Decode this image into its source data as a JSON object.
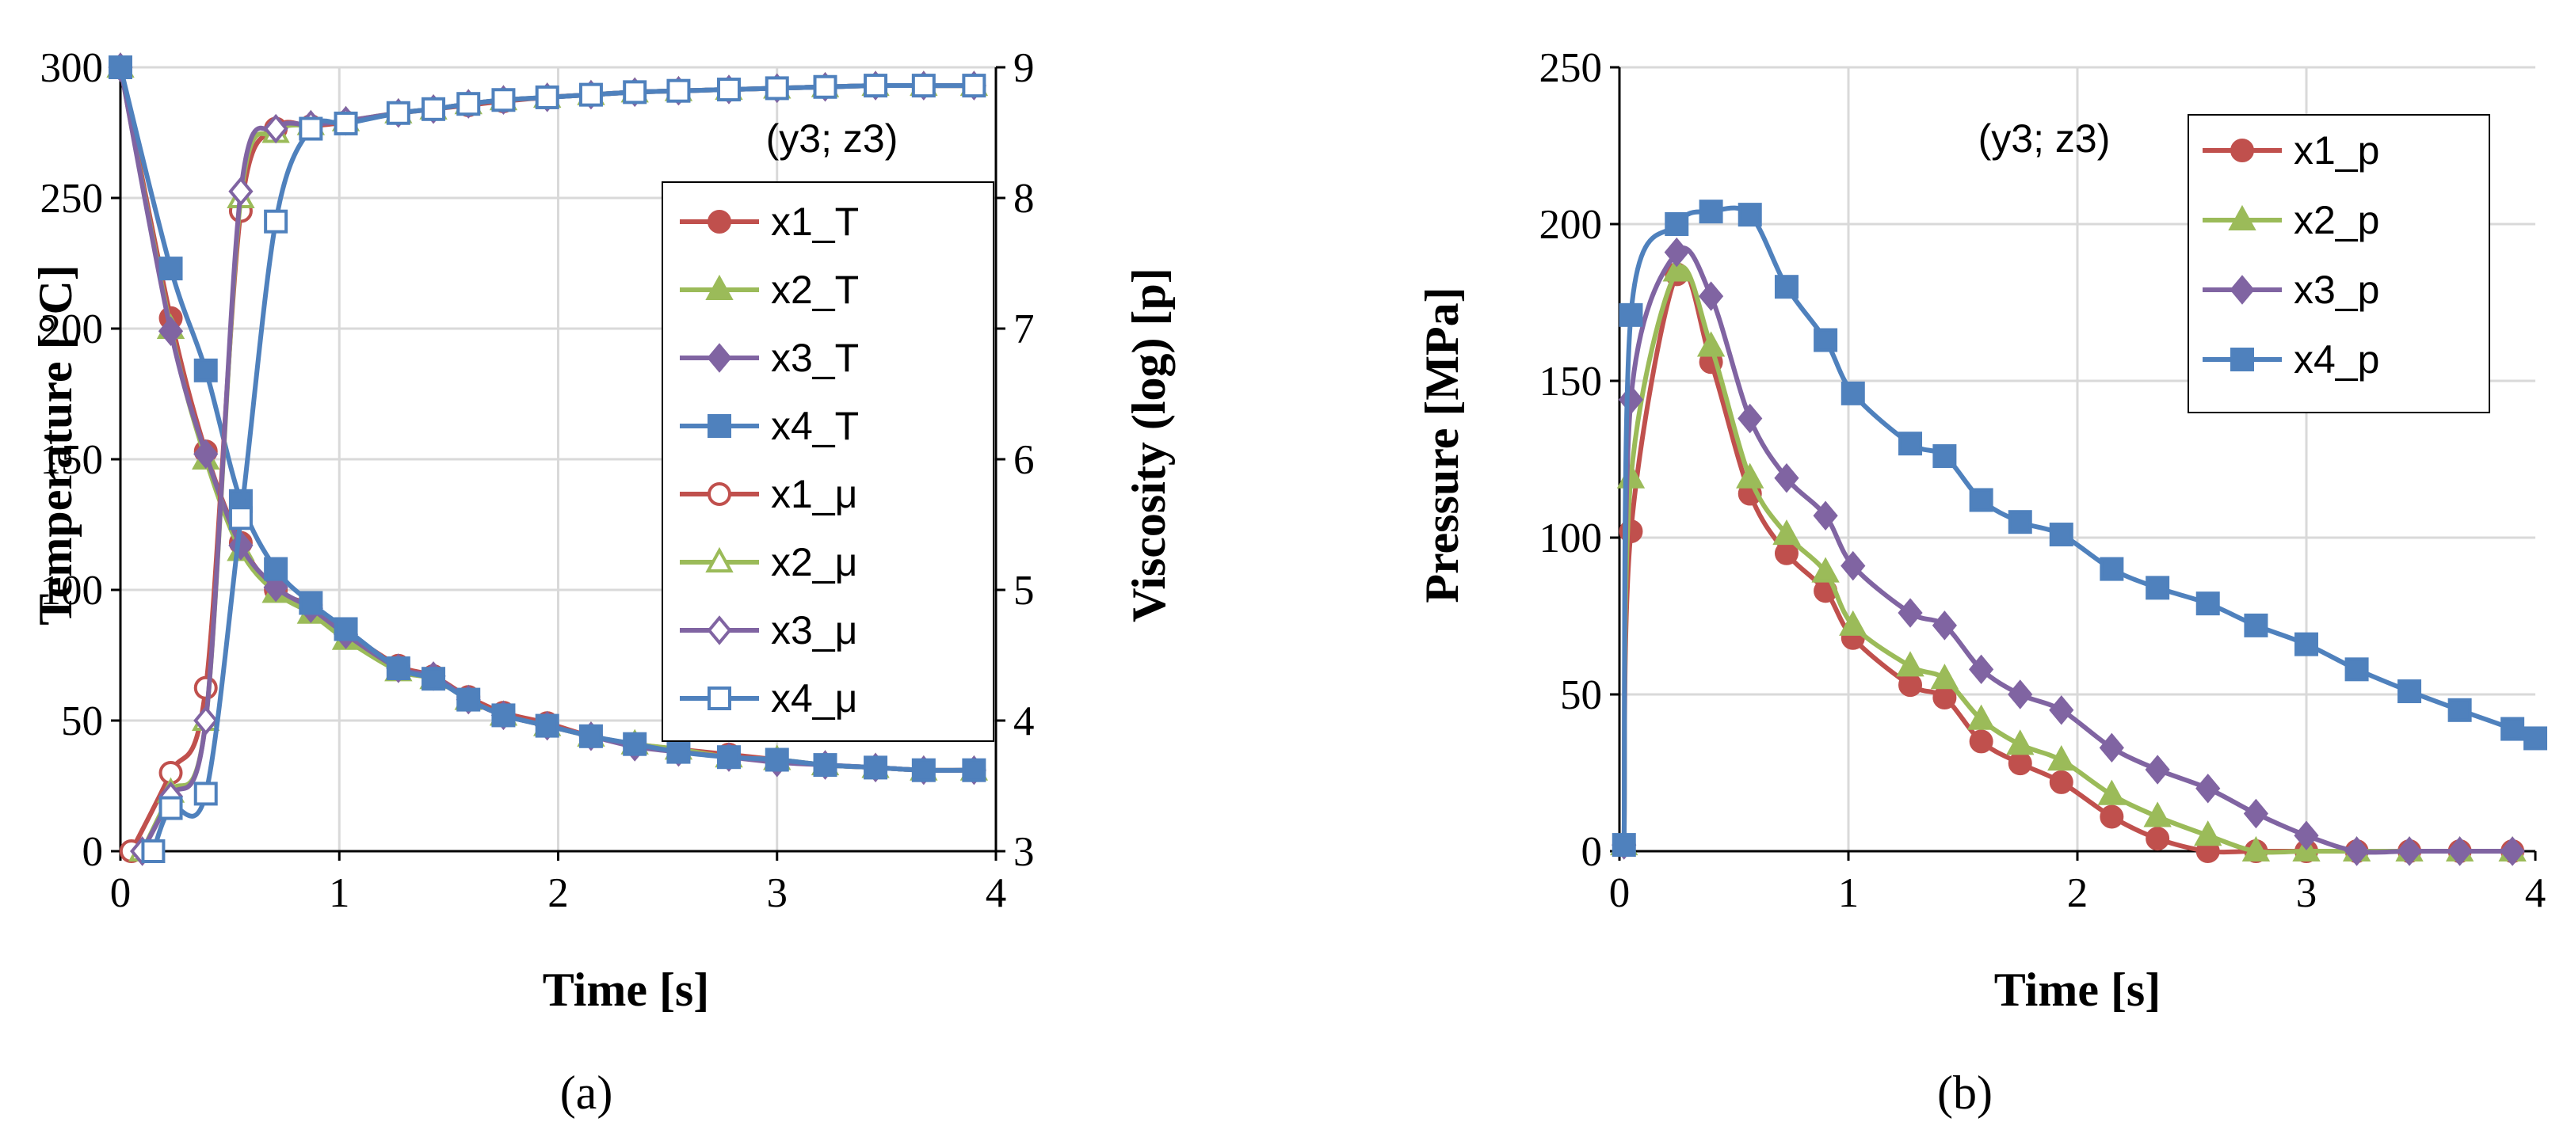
{
  "colors": {
    "x1": "#C0504D",
    "x2": "#9BBB59",
    "x3": "#8064A2",
    "x4": "#4F81BD",
    "grid": "#D9D9D9"
  },
  "chart_data": [
    {
      "type": "line",
      "panel_label": "(a)",
      "annotation": "(y3; z3)",
      "xlabel": "Time [s]",
      "ylabel": "Temperature [°C]",
      "y2label": "Viscosity (log) [p]",
      "xlim": [
        0,
        4
      ],
      "ylim": [
        0,
        300
      ],
      "y2lim": [
        3,
        9
      ],
      "xticks": [
        "0",
        "1",
        "2",
        "3",
        "4"
      ],
      "yticks": [
        "0",
        "50",
        "100",
        "150",
        "200",
        "250",
        "300"
      ],
      "y2ticks": [
        "3",
        "4",
        "5",
        "6",
        "7",
        "8",
        "9"
      ],
      "legend_position": "right",
      "series": [
        {
          "name": "x1_T",
          "color_key": "x1",
          "marker": "circle",
          "filled": true,
          "axis": "left",
          "x": [
            0,
            0.23,
            0.39,
            0.55,
            0.71,
            0.87,
            1.03,
            1.27,
            1.43,
            1.59,
            1.75,
            1.95,
            2.15,
            2.35,
            2.55,
            2.78,
            3.0,
            3.22,
            3.45,
            3.67,
            3.9
          ],
          "y": [
            300,
            204,
            153,
            118,
            100,
            94,
            84,
            71,
            67,
            59,
            53,
            49,
            44,
            41,
            39,
            37,
            35,
            33,
            32,
            31,
            31
          ]
        },
        {
          "name": "x2_T",
          "color_key": "x2",
          "marker": "triangle",
          "filled": true,
          "axis": "left",
          "x": [
            0,
            0.23,
            0.39,
            0.55,
            0.71,
            0.87,
            1.03,
            1.27,
            1.43,
            1.59,
            1.75,
            1.95,
            2.15,
            2.35,
            2.55,
            2.78,
            3.0,
            3.22,
            3.45,
            3.67,
            3.9
          ],
          "y": [
            300,
            200,
            150,
            115,
            99,
            91,
            81,
            69,
            66,
            58,
            52,
            48,
            44,
            41,
            39,
            36,
            35,
            33,
            32,
            31,
            31
          ]
        },
        {
          "name": "x3_T",
          "color_key": "x3",
          "marker": "diamond",
          "filled": true,
          "axis": "left",
          "x": [
            0,
            0.23,
            0.39,
            0.55,
            0.71,
            0.87,
            1.03,
            1.27,
            1.43,
            1.59,
            1.75,
            1.95,
            2.15,
            2.35,
            2.55,
            2.78,
            3.0,
            3.22,
            3.45,
            3.67,
            3.9
          ],
          "y": [
            300,
            199,
            152,
            117,
            101,
            93,
            83,
            70,
            67,
            58,
            52,
            48,
            44,
            40,
            38,
            36,
            34,
            33,
            32,
            31,
            31
          ]
        },
        {
          "name": "x4_T",
          "color_key": "x4",
          "marker": "square",
          "filled": true,
          "axis": "left",
          "x": [
            0,
            0.23,
            0.39,
            0.55,
            0.71,
            0.87,
            1.03,
            1.27,
            1.43,
            1.59,
            1.75,
            1.95,
            2.15,
            2.35,
            2.55,
            2.78,
            3.0,
            3.22,
            3.45,
            3.67,
            3.9
          ],
          "y": [
            300,
            223,
            184,
            134,
            108,
            95,
            85,
            70,
            66,
            58,
            52,
            48,
            44,
            41,
            38,
            36,
            35,
            33,
            32,
            31,
            31
          ]
        },
        {
          "name": "x1_μ",
          "color_key": "x1",
          "marker": "circle",
          "filled": false,
          "axis": "right",
          "x": [
            0.05,
            0.23,
            0.39,
            0.55,
            0.71,
            0.87,
            1.03,
            1.27,
            1.43,
            1.59,
            1.75,
            1.95,
            2.15,
            2.35,
            2.55,
            2.78,
            3.0,
            3.22,
            3.45,
            3.67,
            3.9
          ],
          "y": [
            3.0,
            3.6,
            4.25,
            7.9,
            8.53,
            8.55,
            8.58,
            8.65,
            8.68,
            8.71,
            8.74,
            8.77,
            8.79,
            8.81,
            8.82,
            8.83,
            8.84,
            8.85,
            8.86,
            8.86,
            8.86
          ]
        },
        {
          "name": "x2_μ",
          "color_key": "x2",
          "marker": "triangle",
          "filled": false,
          "axis": "right",
          "x": [
            0.1,
            0.23,
            0.39,
            0.55,
            0.71,
            0.87,
            1.03,
            1.27,
            1.43,
            1.59,
            1.75,
            1.95,
            2.15,
            2.35,
            2.55,
            2.78,
            3.0,
            3.22,
            3.45,
            3.67,
            3.9
          ],
          "y": [
            3.0,
            3.45,
            4.0,
            8.0,
            8.5,
            8.56,
            8.59,
            8.65,
            8.68,
            8.72,
            8.75,
            8.77,
            8.79,
            8.81,
            8.82,
            8.83,
            8.84,
            8.85,
            8.86,
            8.86,
            8.86
          ]
        },
        {
          "name": "x3_μ",
          "color_key": "x3",
          "marker": "diamond",
          "filled": false,
          "axis": "right",
          "x": [
            0.1,
            0.23,
            0.39,
            0.55,
            0.71,
            0.87,
            1.03,
            1.27,
            1.43,
            1.59,
            1.75,
            1.95,
            2.15,
            2.35,
            2.55,
            2.78,
            3.0,
            3.22,
            3.45,
            3.67,
            3.9
          ],
          "y": [
            3.0,
            3.42,
            4.0,
            8.05,
            8.53,
            8.56,
            8.59,
            8.65,
            8.68,
            8.72,
            8.75,
            8.77,
            8.79,
            8.81,
            8.82,
            8.83,
            8.84,
            8.85,
            8.86,
            8.86,
            8.86
          ]
        },
        {
          "name": "x4_μ",
          "color_key": "x4",
          "marker": "square",
          "filled": false,
          "axis": "right",
          "x": [
            0.15,
            0.23,
            0.39,
            0.55,
            0.71,
            0.87,
            1.03,
            1.27,
            1.43,
            1.59,
            1.75,
            1.95,
            2.15,
            2.35,
            2.55,
            2.78,
            3.0,
            3.22,
            3.45,
            3.67,
            3.9
          ],
          "y": [
            3.0,
            3.33,
            3.44,
            5.55,
            7.82,
            8.53,
            8.57,
            8.65,
            8.68,
            8.72,
            8.75,
            8.77,
            8.79,
            8.81,
            8.82,
            8.83,
            8.84,
            8.85,
            8.86,
            8.86,
            8.86
          ]
        }
      ]
    },
    {
      "type": "line",
      "panel_label": "(b)",
      "annotation": "(y3; z3)",
      "xlabel": "Time [s]",
      "ylabel": "Pressure [MPa]",
      "xlim": [
        0,
        4
      ],
      "ylim": [
        0,
        250
      ],
      "xticks": [
        "0",
        "1",
        "2",
        "3",
        "4"
      ],
      "yticks": [
        "0",
        "50",
        "100",
        "150",
        "200",
        "250"
      ],
      "legend_position": "top-right",
      "series": [
        {
          "name": "x1_p",
          "color_key": "x1",
          "marker": "circle",
          "filled": true,
          "x": [
            0.02,
            0.05,
            0.25,
            0.4,
            0.57,
            0.73,
            0.9,
            1.02,
            1.27,
            1.42,
            1.58,
            1.75,
            1.93,
            2.15,
            2.35,
            2.57,
            2.78,
            3.0,
            3.22,
            3.45,
            3.67,
            3.9
          ],
          "y": [
            2,
            102,
            184,
            156,
            114,
            95,
            83,
            68,
            53,
            49,
            35,
            28,
            22,
            11,
            4,
            0,
            0,
            0,
            0,
            0,
            0,
            0
          ]
        },
        {
          "name": "x2_p",
          "color_key": "x2",
          "marker": "triangle",
          "filled": true,
          "x": [
            0.02,
            0.05,
            0.25,
            0.4,
            0.57,
            0.73,
            0.9,
            1.02,
            1.27,
            1.42,
            1.58,
            1.75,
            1.93,
            2.15,
            2.35,
            2.57,
            2.78,
            3.0,
            3.22,
            3.45,
            3.67,
            3.9
          ],
          "y": [
            2,
            119,
            185,
            161,
            119,
            101,
            89,
            72,
            59,
            55,
            42,
            34,
            29,
            18,
            11,
            5,
            0,
            0,
            0,
            0,
            0,
            0
          ]
        },
        {
          "name": "x3_p",
          "color_key": "x3",
          "marker": "diamond",
          "filled": true,
          "x": [
            0.02,
            0.05,
            0.25,
            0.4,
            0.57,
            0.73,
            0.9,
            1.02,
            1.27,
            1.42,
            1.58,
            1.75,
            1.93,
            2.15,
            2.35,
            2.57,
            2.78,
            3.0,
            3.22,
            3.45,
            3.67,
            3.9
          ],
          "y": [
            2,
            144,
            191,
            177,
            138,
            119,
            107,
            91,
            76,
            72,
            58,
            50,
            45,
            33,
            26,
            20,
            12,
            5,
            0,
            0,
            0,
            0
          ]
        },
        {
          "name": "x4_p",
          "color_key": "x4",
          "marker": "square",
          "filled": true,
          "x": [
            0.02,
            0.05,
            0.25,
            0.4,
            0.57,
            0.73,
            0.9,
            1.02,
            1.27,
            1.42,
            1.58,
            1.75,
            1.93,
            2.15,
            2.35,
            2.57,
            2.78,
            3.0,
            3.22,
            3.45,
            3.67,
            3.9,
            4.0
          ],
          "y": [
            2,
            171,
            200,
            204,
            203,
            180,
            163,
            146,
            130,
            126,
            112,
            105,
            101,
            90,
            84,
            79,
            72,
            66,
            58,
            51,
            45,
            39,
            36
          ]
        }
      ]
    }
  ]
}
